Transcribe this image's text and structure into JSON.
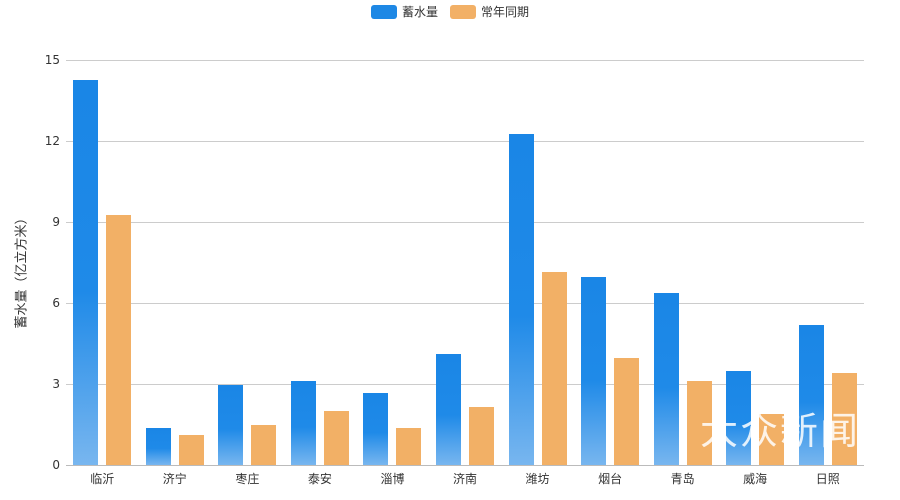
{
  "legend": [
    {
      "label": "蓄水量",
      "color": "#1e88e5"
    },
    {
      "label": "常年同期",
      "color": "#f2b066"
    }
  ],
  "yaxis": {
    "label": "蓄水量（亿立方米）",
    "ticks": [
      "0",
      "3",
      "6",
      "9",
      "12",
      "15"
    ]
  },
  "watermark": "大众新闻",
  "chart_data": {
    "type": "bar",
    "title": "",
    "xlabel": "",
    "ylabel": "蓄水量（亿立方米）",
    "ylim": [
      0,
      15
    ],
    "grid": true,
    "legend_position": "top",
    "categories": [
      "临沂",
      "济宁",
      "枣庄",
      "泰安",
      "淄博",
      "济南",
      "潍坊",
      "烟台",
      "青岛",
      "威海",
      "日照"
    ],
    "series": [
      {
        "name": "蓄水量",
        "values": [
          14.26,
          1.37,
          2.96,
          3.1,
          2.67,
          4.1,
          12.26,
          6.96,
          6.37,
          3.5,
          5.2
        ]
      },
      {
        "name": "常年同期",
        "values": [
          9.26,
          1.1,
          1.5,
          2.0,
          1.37,
          2.15,
          7.15,
          3.96,
          3.1,
          1.9,
          3.4
        ]
      }
    ]
  }
}
